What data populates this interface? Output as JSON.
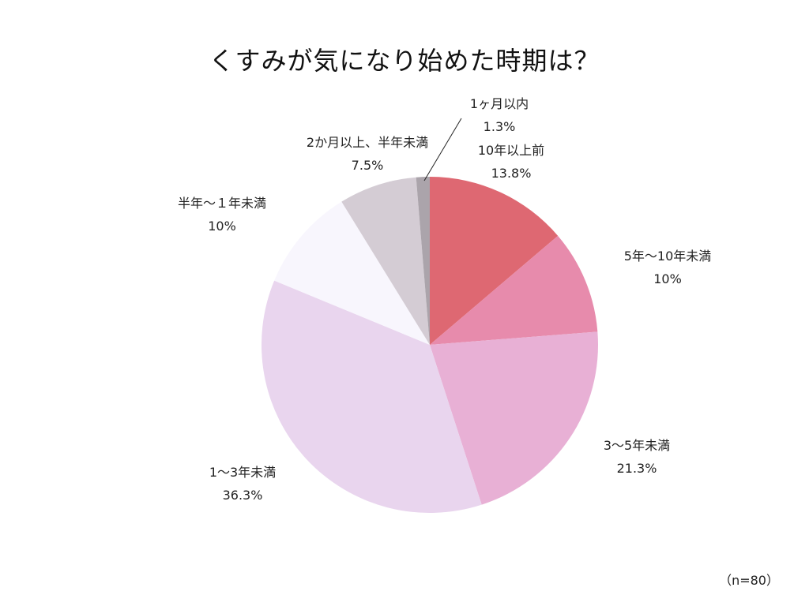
{
  "chart_data": {
    "type": "pie",
    "title": "くすみが気になり始めた時期は？",
    "note": "（n=80）",
    "start": "12 o'clock, clockwise",
    "slices": [
      {
        "label": "10年以上前",
        "value": 13.8,
        "value_label": "13.8%",
        "color": "#de6872"
      },
      {
        "label": "5年〜10年未満",
        "value": 10,
        "value_label": "10%",
        "color": "#e78bac"
      },
      {
        "label": "3〜5年未満",
        "value": 21.3,
        "value_label": "21.3%",
        "color": "#e8b0d5"
      },
      {
        "label": "1〜3年未満",
        "value": 36.3,
        "value_label": "36.3%",
        "color": "#e9d5ee"
      },
      {
        "label": "半年〜１年未満",
        "value": 10,
        "value_label": "10%",
        "color": "#f8f6fd"
      },
      {
        "label": "2か月以上、半年未満",
        "value": 7.5,
        "value_label": "7.5%",
        "color": "#d4ccd4"
      },
      {
        "label": "1ヶ月以内",
        "value": 1.3,
        "value_label": "1.3%",
        "color": "#aba4ab"
      }
    ]
  }
}
